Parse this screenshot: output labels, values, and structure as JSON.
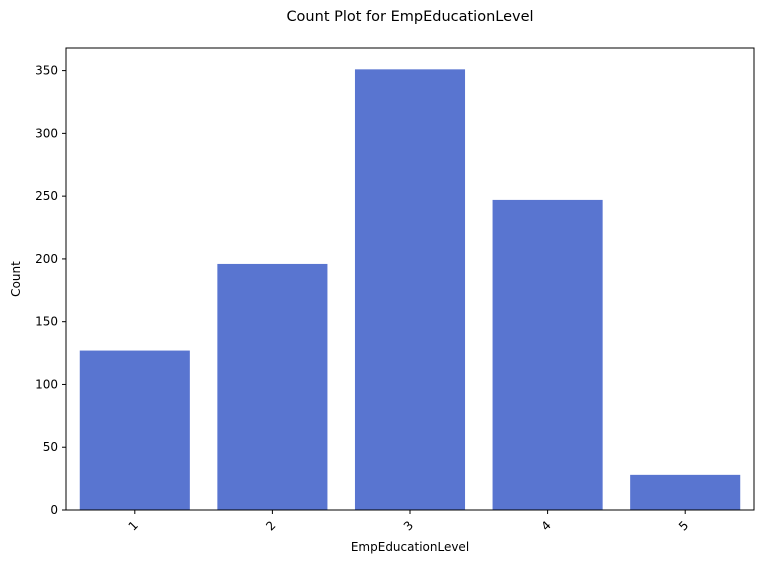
{
  "chart_data": {
    "type": "bar",
    "title": "Count Plot for EmpEducationLevel",
    "xlabel": "EmpEducationLevel",
    "ylabel": "Count",
    "categories": [
      "1",
      "2",
      "3",
      "4",
      "5"
    ],
    "values": [
      127,
      196,
      351,
      247,
      28
    ],
    "ylim": [
      0,
      368
    ],
    "yticks": [
      0,
      50,
      100,
      150,
      200,
      250,
      300,
      350
    ],
    "bar_color": "#5975d0",
    "grid": false,
    "legend": "none"
  }
}
